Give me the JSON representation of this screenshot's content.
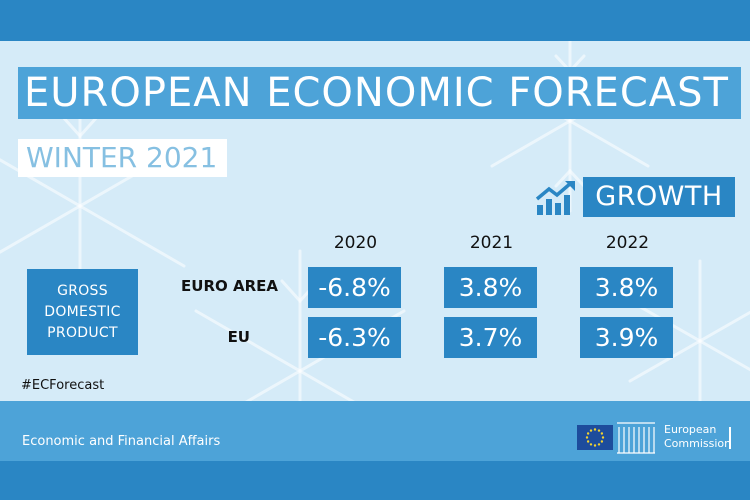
{
  "title": "EUROPEAN ECONOMIC FORECAST",
  "subtitle": "WINTER 2021",
  "section_label": "GROWTH",
  "metric_label": [
    "GROSS",
    "DOMESTIC",
    "PRODUCT"
  ],
  "years": [
    "2020",
    "2021",
    "2022"
  ],
  "rows": [
    {
      "label": "EURO AREA",
      "values": [
        "-6.8%",
        "3.8%",
        "3.8%"
      ]
    },
    {
      "label": "EU",
      "values": [
        "-6.3%",
        "3.7%",
        "3.9%"
      ]
    }
  ],
  "hashtag": "#ECForecast",
  "footer_text": "Economic and Financial Affairs",
  "logo_text": [
    "European",
    "Commission"
  ],
  "icons": [
    "growth-chart-icon",
    "eu-flag-icon",
    "commission-building-icon"
  ],
  "colors": {
    "primary_blue": "#2a86c4",
    "light_blue": "#4da3d8",
    "background": "#d5ebf8",
    "subtitle_text": "#86c0e2"
  }
}
